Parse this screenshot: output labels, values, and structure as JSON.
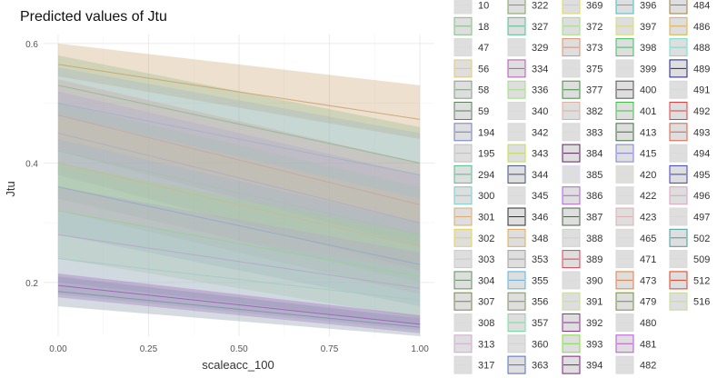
{
  "chart_data": {
    "type": "line",
    "title": "Predicted values of Jtu",
    "xlabel": "scaleacc_100",
    "ylabel": "Jtu",
    "xlim": [
      -0.04,
      1.04
    ],
    "ylim": [
      0.11,
      0.615
    ],
    "x_ticks": [
      {
        "value": 0,
        "label": "0.00"
      },
      {
        "value": 0.25,
        "label": "0.25"
      },
      {
        "value": 0.5,
        "label": "0.50"
      },
      {
        "value": 0.75,
        "label": "0.75"
      },
      {
        "value": 1,
        "label": "1.00"
      }
    ],
    "y_ticks": [
      {
        "value": 0.2,
        "label": "0.2"
      },
      {
        "value": 0.4,
        "label": "0.4"
      },
      {
        "value": 0.6,
        "label": "0.6"
      }
    ],
    "grid": true,
    "legend_position": "right",
    "x": [
      0,
      1
    ],
    "series": [
      {
        "name": "10",
        "values": [
          0.565,
          0.473
        ],
        "band": [
          [
            0.545,
            0.6
          ],
          [
            0.44,
            0.53
          ]
        ],
        "color": "#c9a06a"
      },
      {
        "name": "18",
        "values": [
          0.53,
          0.4
        ],
        "band": [
          [
            0.48,
            0.58
          ],
          [
            0.34,
            0.46
          ]
        ],
        "color": "#8fb98a"
      },
      {
        "name": "47",
        "values": [
          0.5,
          0.38
        ],
        "band": [
          [
            0.44,
            0.56
          ],
          [
            0.3,
            0.45
          ]
        ],
        "color": "#9fb3c8"
      },
      {
        "name": "56",
        "values": [
          0.48,
          0.33
        ],
        "band": [
          [
            0.42,
            0.54
          ],
          [
            0.26,
            0.4
          ]
        ],
        "color": "#c7a3a3"
      },
      {
        "name": "58",
        "values": [
          0.45,
          0.3
        ],
        "band": [
          [
            0.38,
            0.52
          ],
          [
            0.22,
            0.38
          ]
        ],
        "color": "#b0a9c9"
      },
      {
        "name": "59",
        "values": [
          0.42,
          0.28
        ],
        "band": [
          [
            0.34,
            0.5
          ],
          [
            0.2,
            0.36
          ]
        ],
        "color": "#a3c2b0"
      },
      {
        "name": "194",
        "values": [
          0.4,
          0.26
        ],
        "band": [
          [
            0.32,
            0.48
          ],
          [
            0.18,
            0.34
          ]
        ],
        "color": "#c9b98f"
      },
      {
        "name": "195",
        "values": [
          0.36,
          0.23
        ],
        "band": [
          [
            0.28,
            0.44
          ],
          [
            0.16,
            0.3
          ]
        ],
        "color": "#8fa9c9"
      },
      {
        "name": "294",
        "values": [
          0.32,
          0.21
        ],
        "band": [
          [
            0.24,
            0.4
          ],
          [
            0.14,
            0.28
          ]
        ],
        "color": "#9ccf8f"
      },
      {
        "name": "300",
        "values": [
          0.28,
          0.19
        ],
        "band": [
          [
            0.2,
            0.36
          ],
          [
            0.13,
            0.25
          ]
        ],
        "color": "#b8a3c9"
      },
      {
        "name": "301",
        "values": [
          0.24,
          0.17
        ],
        "band": [
          [
            0.18,
            0.32
          ],
          [
            0.12,
            0.22
          ]
        ],
        "color": "#a3c9c4"
      },
      {
        "name": "302",
        "values": [
          0.195,
          0.13
        ],
        "band": [
          [
            0.175,
            0.215
          ],
          [
            0.115,
            0.145
          ]
        ],
        "color": "#9b59b6"
      },
      {
        "name": "303",
        "values": [
          0.185,
          0.125
        ],
        "band": [
          [
            0.16,
            0.21
          ],
          [
            0.11,
            0.14
          ]
        ],
        "color": "#7f8fa6"
      }
    ],
    "legend": {
      "columns": [
        [
          {
            "label": "10",
            "color": "#d9d9d9"
          },
          {
            "label": "18",
            "color": "#7fbf7f"
          },
          {
            "label": "47",
            "color": "#d9d9d9"
          },
          {
            "label": "56",
            "color": "#e6c86e"
          },
          {
            "label": "58",
            "color": "#7f9f7f"
          },
          {
            "label": "59",
            "color": "#5f7f5f"
          },
          {
            "label": "194",
            "color": "#6f7fbf"
          },
          {
            "label": "195",
            "color": "#bfbfbf"
          },
          {
            "label": "294",
            "color": "#4fbf8f"
          },
          {
            "label": "300",
            "color": "#6fcfcf"
          },
          {
            "label": "301",
            "color": "#dfa96f"
          },
          {
            "label": "302",
            "color": "#e6d34f"
          },
          {
            "label": "303",
            "color": "#c9c9c9"
          },
          {
            "label": "304",
            "color": "#5f8f5f"
          },
          {
            "label": "307",
            "color": "#7f7f4f"
          },
          {
            "label": "308",
            "color": "#d9d9d9"
          },
          {
            "label": "313",
            "color": "#cfa9cf"
          },
          {
            "label": "317",
            "color": "#d9d9d9"
          }
        ],
        [
          {
            "label": "322",
            "color": "#7f9f5f"
          },
          {
            "label": "327",
            "color": "#4fbf8f"
          },
          {
            "label": "329",
            "color": "#d9d9d9"
          },
          {
            "label": "334",
            "color": "#bf4fbf"
          },
          {
            "label": "336",
            "color": "#9fdf7f"
          },
          {
            "label": "340",
            "color": "#d9d9d9"
          },
          {
            "label": "342",
            "color": "#d9d9d9"
          },
          {
            "label": "343",
            "color": "#bfdf4f"
          },
          {
            "label": "344",
            "color": "#3f4f7f"
          },
          {
            "label": "345",
            "color": "#d9d9d9"
          },
          {
            "label": "346",
            "color": "#2f2f2f"
          },
          {
            "label": "348",
            "color": "#dfa94f"
          },
          {
            "label": "353",
            "color": "#9f9f9f"
          },
          {
            "label": "355",
            "color": "#5fafdf"
          },
          {
            "label": "356",
            "color": "#7f8f5f"
          },
          {
            "label": "357",
            "color": "#6fdf9f"
          },
          {
            "label": "360",
            "color": "#cfcfcf"
          },
          {
            "label": "363",
            "color": "#4f6fbf"
          }
        ],
        [
          {
            "label": "369",
            "color": "#dfd94f"
          },
          {
            "label": "372",
            "color": "#9fdf7f"
          },
          {
            "label": "373",
            "color": "#df8f6f"
          },
          {
            "label": "375",
            "color": "#d9d9d9"
          },
          {
            "label": "377",
            "color": "#3f8f3f"
          },
          {
            "label": "382",
            "color": "#dfaf9f"
          },
          {
            "label": "383",
            "color": "#d9d9d9"
          },
          {
            "label": "384",
            "color": "#5f1f5f"
          },
          {
            "label": "385",
            "color": "#dfd9f9"
          },
          {
            "label": "386",
            "color": "#af5fdf"
          },
          {
            "label": "387",
            "color": "#4f5f4f"
          },
          {
            "label": "388",
            "color": "#cfcfcf"
          },
          {
            "label": "389",
            "color": "#df3f4f"
          },
          {
            "label": "390",
            "color": "#d9d9d9"
          },
          {
            "label": "391",
            "color": "#c9df8f"
          },
          {
            "label": "392",
            "color": "#8f2f8f"
          },
          {
            "label": "393",
            "color": "#7fdf3f"
          },
          {
            "label": "394",
            "color": "#7f1f7f"
          }
        ],
        [
          {
            "label": "396",
            "color": "#3fbfbf"
          },
          {
            "label": "397",
            "color": "#dfd96f"
          },
          {
            "label": "398",
            "color": "#3fbf5f"
          },
          {
            "label": "399",
            "color": "#d9d9d9"
          },
          {
            "label": "400",
            "color": "#4f4f4f"
          },
          {
            "label": "401",
            "color": "#3fbf3f"
          },
          {
            "label": "413",
            "color": "#3f6f3f"
          },
          {
            "label": "415",
            "color": "#7f7fdf"
          },
          {
            "label": "420",
            "color": "#dfdfc9"
          },
          {
            "label": "422",
            "color": "#d9d9d9"
          },
          {
            "label": "423",
            "color": "#dfafaf"
          },
          {
            "label": "465",
            "color": "#d9d9d9"
          },
          {
            "label": "471",
            "color": "#d9d9d9"
          },
          {
            "label": "473",
            "color": "#df7f3f"
          },
          {
            "label": "479",
            "color": "#6f8f3f"
          },
          {
            "label": "480",
            "color": "#d9d9d9"
          },
          {
            "label": "481",
            "color": "#bf4fdf"
          },
          {
            "label": "482",
            "color": "#d9d9d9"
          }
        ],
        [
          {
            "label": "484",
            "color": "#9f7f3f"
          },
          {
            "label": "486",
            "color": "#dfaf3f"
          },
          {
            "label": "488",
            "color": "#6fdfcf"
          },
          {
            "label": "489",
            "color": "#1f1f8f"
          },
          {
            "label": "491",
            "color": "#d9d9d9"
          },
          {
            "label": "492",
            "color": "#df3f3f"
          },
          {
            "label": "493",
            "color": "#df5f3f"
          },
          {
            "label": "494",
            "color": "#d9d9d9"
          },
          {
            "label": "495",
            "color": "#3f3fbf"
          },
          {
            "label": "496",
            "color": "#df9fbf"
          },
          {
            "label": "497",
            "color": "#d9d9d9"
          },
          {
            "label": "502",
            "color": "#3f9f9f"
          },
          {
            "label": "509",
            "color": "#d9d9d9"
          },
          {
            "label": "512",
            "color": "#df3f1f"
          },
          {
            "label": "516",
            "color": "#bfdf8f"
          }
        ]
      ]
    }
  }
}
